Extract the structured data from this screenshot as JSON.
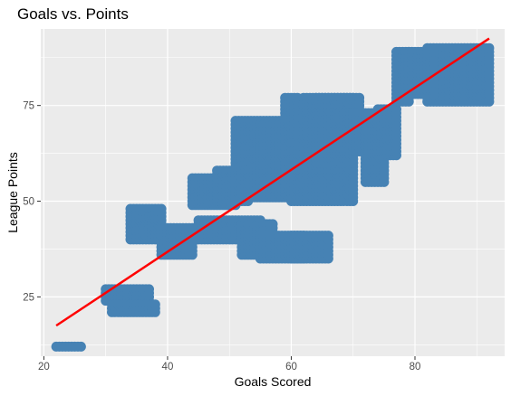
{
  "chart_data": {
    "type": "scatter",
    "title": "Goals vs. Points",
    "xlabel": "Goals Scored",
    "ylabel": "League Points",
    "xlim": [
      19.5,
      94.5
    ],
    "ylim": [
      9.5,
      95
    ],
    "x_ticks": [
      20,
      40,
      60,
      80
    ],
    "y_ticks": [
      25,
      50,
      75
    ],
    "grid": true,
    "colors": {
      "panel": "#ebebeb",
      "grid": "#ffffff",
      "points": "#4682b4",
      "trend": "#ff0000"
    },
    "clusters": [
      {
        "x": [
          22,
          26
        ],
        "y": [
          12,
          12
        ]
      },
      {
        "x": [
          30,
          37
        ],
        "y": [
          24,
          27
        ]
      },
      {
        "x": [
          31,
          38
        ],
        "y": [
          21,
          23
        ]
      },
      {
        "x": [
          34,
          39
        ],
        "y": [
          40,
          48
        ]
      },
      {
        "x": [
          39,
          44
        ],
        "y": [
          36,
          43
        ]
      },
      {
        "x": [
          44,
          51
        ],
        "y": [
          49,
          56
        ]
      },
      {
        "x": [
          48,
          53
        ],
        "y": [
          50,
          58
        ]
      },
      {
        "x": [
          45,
          55
        ],
        "y": [
          40,
          45
        ]
      },
      {
        "x": [
          52,
          57
        ],
        "y": [
          36,
          44
        ]
      },
      {
        "x": [
          55,
          62
        ],
        "y": [
          35,
          41
        ]
      },
      {
        "x": [
          60,
          66
        ],
        "y": [
          35,
          41
        ]
      },
      {
        "x": [
          51,
          60
        ],
        "y": [
          51,
          71
        ]
      },
      {
        "x": [
          55,
          63
        ],
        "y": [
          56,
          70
        ]
      },
      {
        "x": [
          59,
          61
        ],
        "y": [
          52,
          77
        ]
      },
      {
        "x": [
          60,
          70
        ],
        "y": [
          50,
          65
        ]
      },
      {
        "x": [
          64,
          70
        ],
        "y": [
          60,
          77
        ]
      },
      {
        "x": [
          62,
          71
        ],
        "y": [
          64,
          77
        ]
      },
      {
        "x": [
          70,
          74
        ],
        "y": [
          63,
          73
        ]
      },
      {
        "x": [
          72,
          75
        ],
        "y": [
          55,
          68
        ]
      },
      {
        "x": [
          74,
          77
        ],
        "y": [
          62,
          74
        ]
      },
      {
        "x": [
          77,
          79
        ],
        "y": [
          76,
          89
        ]
      },
      {
        "x": [
          82,
          92
        ],
        "y": [
          76,
          90
        ]
      },
      {
        "x": [
          79,
          83
        ],
        "y": [
          78,
          89
        ]
      }
    ],
    "trend_line": {
      "x": [
        22,
        92
      ],
      "y": [
        17.5,
        92.5
      ]
    }
  }
}
